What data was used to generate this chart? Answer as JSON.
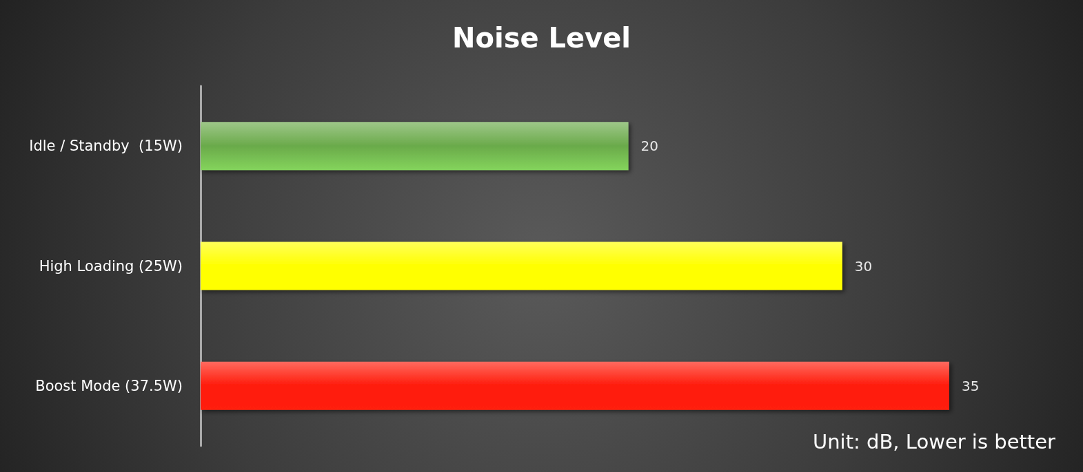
{
  "chart_data": {
    "type": "bar",
    "title": "Noise Level",
    "orientation": "horizontal",
    "tick_labels": "y",
    "categories": [
      "Idle / Standby  (15W)",
      "High Loading (25W)",
      "Boost Mode (37.5W)"
    ],
    "values": [
      20,
      30,
      35
    ],
    "colors": [
      "#6aaa4a",
      "#ffff00",
      "#ff1a0a"
    ],
    "data_labels": true,
    "grid": false,
    "annotations": [
      "Unit: dB, Lower is better"
    ]
  }
}
